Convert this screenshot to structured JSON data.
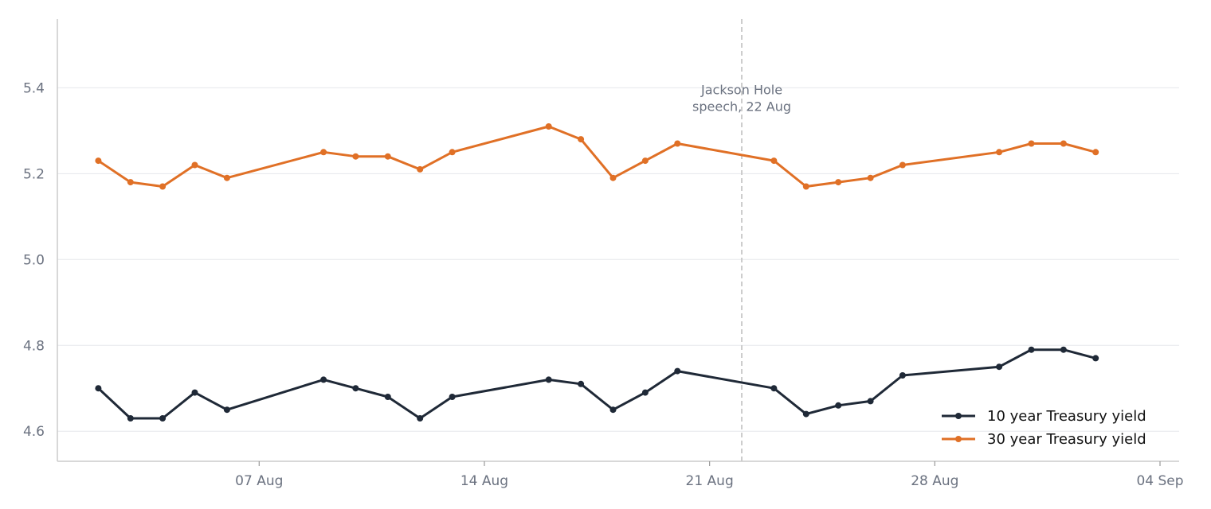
{
  "chart_data": {
    "type": "line",
    "title": "",
    "xlabel": "",
    "ylabel": "",
    "ylim": [
      4.53,
      5.56
    ],
    "xlim": [
      "2025-08-01",
      "2025-09-04"
    ],
    "grid": "horizontal",
    "legend_position": "bottom-right",
    "x_ticks": [
      {
        "date": "2025-08-07",
        "label": "07 Aug"
      },
      {
        "date": "2025-08-14",
        "label": "14 Aug"
      },
      {
        "date": "2025-08-21",
        "label": "21 Aug"
      },
      {
        "date": "2025-08-28",
        "label": "28 Aug"
      },
      {
        "date": "2025-09-04",
        "label": "04 Sep"
      }
    ],
    "y_ticks": [
      {
        "value": 4.6,
        "label": "4.6"
      },
      {
        "value": 4.8,
        "label": "4.8"
      },
      {
        "value": 5.0,
        "label": "5.0"
      },
      {
        "value": 5.2,
        "label": "5.2"
      },
      {
        "value": 5.4,
        "label": "5.4"
      }
    ],
    "x": [
      "2025-08-02",
      "2025-08-03",
      "2025-08-04",
      "2025-08-05",
      "2025-08-06",
      "2025-08-09",
      "2025-08-10",
      "2025-08-11",
      "2025-08-12",
      "2025-08-13",
      "2025-08-16",
      "2025-08-17",
      "2025-08-18",
      "2025-08-19",
      "2025-08-20",
      "2025-08-23",
      "2025-08-24",
      "2025-08-25",
      "2025-08-26",
      "2025-08-27",
      "2025-08-30",
      "2025-08-31",
      "2025-09-01",
      "2025-09-02"
    ],
    "series": [
      {
        "name": "10 year Treasury yield",
        "color": "#1f2937",
        "values": [
          4.7,
          4.63,
          4.63,
          4.69,
          4.65,
          4.72,
          4.7,
          4.68,
          4.63,
          4.68,
          4.72,
          4.71,
          4.65,
          4.69,
          4.74,
          4.7,
          4.64,
          4.66,
          4.67,
          4.73,
          4.75,
          4.79,
          4.79,
          4.77
        ]
      },
      {
        "name": "30 year Treasury yield",
        "color": "#e07026",
        "values": [
          5.23,
          5.18,
          5.17,
          5.22,
          5.19,
          5.25,
          5.24,
          5.24,
          5.21,
          5.25,
          5.31,
          5.28,
          5.19,
          5.23,
          5.27,
          5.23,
          5.17,
          5.18,
          5.19,
          5.22,
          5.25,
          5.27,
          5.27,
          5.25
        ]
      }
    ],
    "annotations": [
      {
        "x": "2025-08-22",
        "lines": [
          "Jackson Hole",
          "speech, 22 Aug"
        ],
        "style": "dashed-vertical",
        "color": "#cccccc"
      }
    ]
  }
}
